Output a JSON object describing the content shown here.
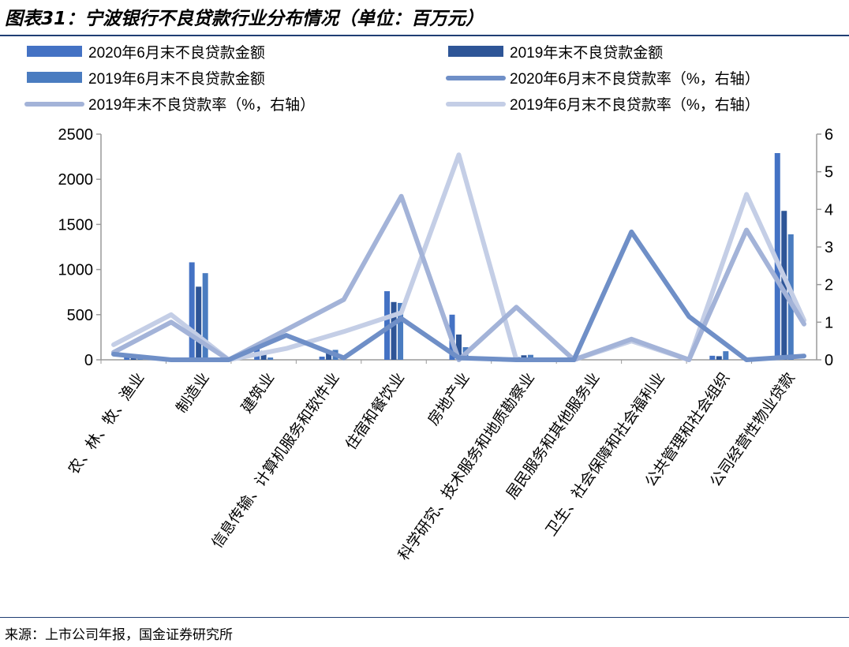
{
  "figure": {
    "title": "图表31：宁波银行不良贷款行业分布情况（单位：百万元）",
    "source": "来源：上市公司年报，国金证券研究所"
  },
  "colors": {
    "bar_2020H1": "#4472c4",
    "bar_2019YE": "#2e5597",
    "bar_2019H1": "#4a7cc0",
    "line_2020H1": "#6f8fc7",
    "line_2019YE": "#a3b3d8",
    "line_2019H1": "#c4cee6",
    "rule": "#1f3e73",
    "axis": "#9a9a9a"
  },
  "chart_data": {
    "type": "bar",
    "categories": [
      "农、林、牧、渔业",
      "制造业",
      "建筑业",
      "信息传输、计算机服务和软件业",
      "住宿和餐饮业",
      "房地产业",
      "科学研究、技术服务和地质勘察业",
      "居民服务和其他服务业",
      "卫生、社会保障和社会福利业",
      "公共管理和社会组织",
      "公司经营性物业贷款"
    ],
    "left_axis": {
      "ylim": [
        0,
        2500
      ],
      "ticks": [
        0,
        500,
        1000,
        1500,
        2000,
        2500
      ]
    },
    "right_axis": {
      "ylim": [
        0,
        6
      ],
      "ticks": [
        0,
        1,
        2,
        3,
        4,
        5,
        6
      ]
    },
    "bar_series": [
      {
        "name": "2020年6月末不良贷款金额",
        "color_key": "bar_2020H1",
        "values": [
          55,
          1080,
          150,
          35,
          760,
          500,
          30,
          0,
          0,
          45,
          2290
        ]
      },
      {
        "name": "2019年末不良贷款金额",
        "color_key": "bar_2019YE",
        "values": [
          30,
          810,
          100,
          80,
          640,
          280,
          50,
          0,
          0,
          40,
          1650
        ]
      },
      {
        "name": "2019年6月末不良贷款金额",
        "color_key": "bar_2019H1",
        "values": [
          15,
          960,
          25,
          110,
          630,
          140,
          55,
          0,
          0,
          95,
          1390
        ]
      }
    ],
    "line_series": [
      {
        "name": "2020年6月末不良贷款率（%，右轴）",
        "color_key": "line_2020H1",
        "values": [
          0.15,
          0.0,
          0.0,
          0.65,
          0.05,
          1.1,
          0.05,
          0.0,
          0.0,
          3.4,
          1.15,
          0.0,
          0.1
        ]
      },
      {
        "name": "2019年末不良贷款率（%，右轴）",
        "color_key": "line_2019YE",
        "values": [
          0.2,
          1.0,
          0.0,
          0.8,
          1.6,
          4.35,
          0.0,
          1.4,
          0.0,
          0.55,
          0.0,
          3.45,
          0.95
        ]
      },
      {
        "name": "2019年6月末不良贷款率（%，右轴）",
        "color_key": "line_2019H1",
        "values": [
          0.4,
          1.2,
          0.0,
          0.3,
          0.75,
          1.25,
          5.45,
          0.0,
          0.0,
          0.5,
          0.0,
          4.4,
          1.05
        ]
      }
    ],
    "line_x_labels": [
      "",
      "",
      "",
      "",
      "",
      "",
      "",
      "",
      "",
      "",
      "",
      "",
      ""
    ],
    "legend": [
      "2020年6月末不良贷款金额",
      "2019年末不良贷款金额",
      "2019年6月末不良贷款金额",
      "2020年6月末不良贷款率（%，右轴）",
      "2019年末不良贷款率（%，右轴）",
      "2019年6月末不良贷款率（%，右轴）"
    ]
  }
}
